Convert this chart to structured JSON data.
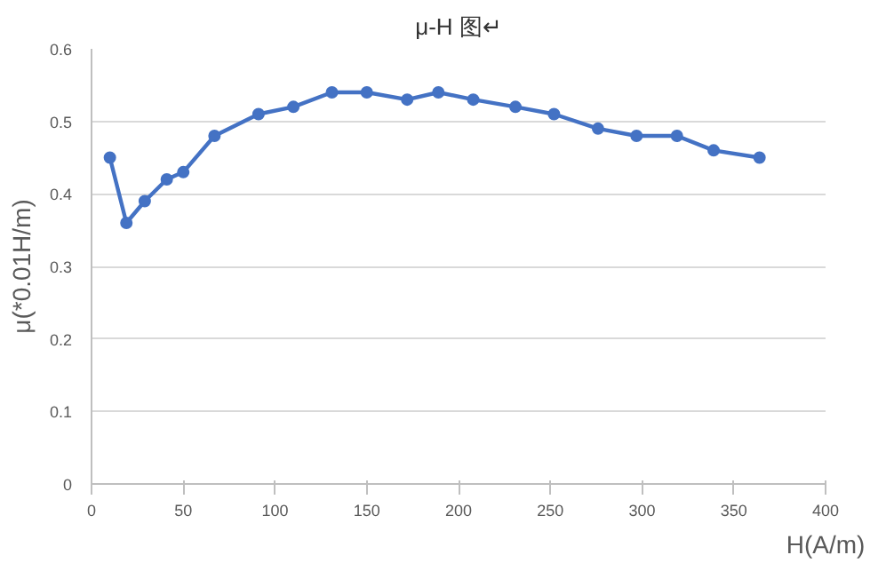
{
  "chart_data": {
    "type": "line",
    "title": "μ-H 图↵",
    "xlabel": "H(A/m)",
    "ylabel": "μ(*0.01H/m)",
    "x": [
      10,
      19,
      29,
      41,
      50,
      67,
      91,
      110,
      131,
      150,
      172,
      189,
      208,
      231,
      252,
      276,
      297,
      319,
      339,
      364
    ],
    "series": [
      {
        "color": "#4472c4",
        "values": [
          0.45,
          0.36,
          0.39,
          0.42,
          0.43,
          0.48,
          0.51,
          0.52,
          0.54,
          0.54,
          0.53,
          0.54,
          0.53,
          0.52,
          0.51,
          0.49,
          0.48,
          0.48,
          0.46,
          0.45
        ]
      }
    ],
    "xlim": [
      0,
      400
    ],
    "xticks": [
      0,
      50,
      100,
      150,
      200,
      250,
      300,
      350,
      400
    ],
    "ylim": [
      0,
      0.6
    ],
    "yticks": [
      0,
      {
        "value": 0.1,
        "label": "0.1"
      },
      {
        "value": 0.2,
        "label": "0.2"
      },
      {
        "value": 0.3,
        "label": "0.3"
      },
      {
        "value": 0.4,
        "label": "0.4"
      },
      {
        "value": 0.5,
        "label": "0.5"
      },
      {
        "value": 0.6,
        "label": "0.6"
      }
    ],
    "grid": "y",
    "marker": "circle",
    "line_style": "solid"
  }
}
